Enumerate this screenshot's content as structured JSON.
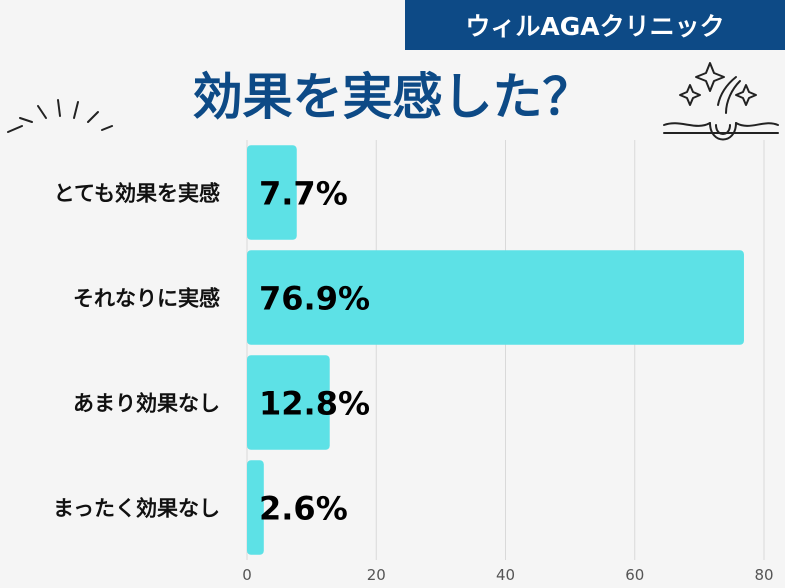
{
  "header": {
    "brand": "ウィルAGAクリニック",
    "title": "効果を実感した？"
  },
  "colors": {
    "bar": "#5de1e6",
    "brand": "#0d4a86",
    "grid": "#d9d9d9"
  },
  "chart_data": {
    "type": "bar",
    "orientation": "horizontal",
    "title": "効果を実感した？",
    "categories": [
      "とても効果を実感",
      "それなりに実感",
      "あまり効果なし",
      "まったく効果なし"
    ],
    "values": [
      7.7,
      76.9,
      12.8,
      2.6
    ],
    "value_labels": [
      "7.7%",
      "76.9%",
      "12.8%",
      "2.6%"
    ],
    "xlim": [
      0,
      80
    ],
    "xticks": [
      0,
      20,
      40,
      60,
      80
    ],
    "xlabel": "",
    "ylabel": "",
    "grid": true
  }
}
